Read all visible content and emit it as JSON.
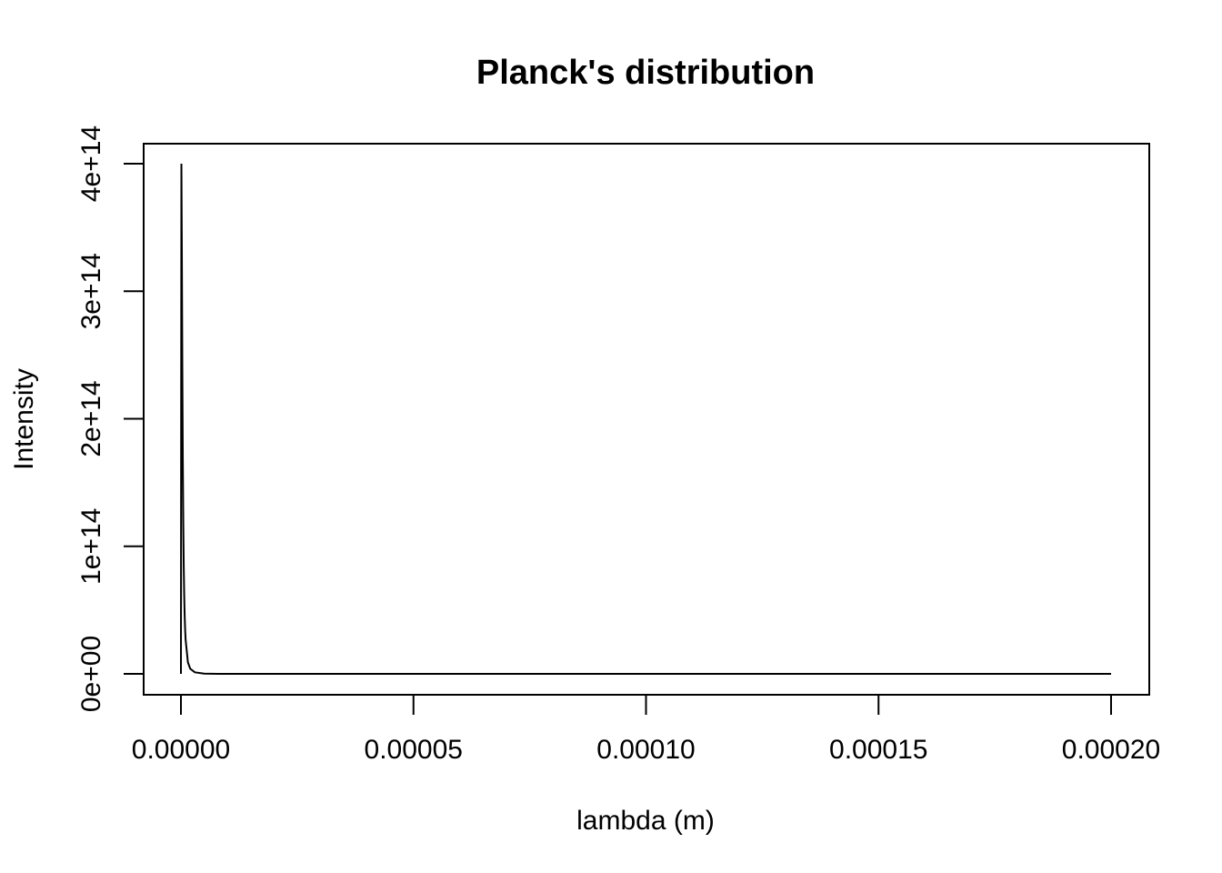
{
  "chart_data": {
    "type": "line",
    "title": "Planck's distribution",
    "xlabel": "lambda (m)",
    "ylabel": "Intensity",
    "xlim": [
      0,
      0.0002
    ],
    "ylim": [
      0,
      400000000000000.0
    ],
    "x_ticks": [
      {
        "value": 0,
        "label": "0.00000"
      },
      {
        "value": 5e-05,
        "label": "0.00005"
      },
      {
        "value": 0.0001,
        "label": "0.00010"
      },
      {
        "value": 0.00015,
        "label": "0.00015"
      },
      {
        "value": 0.0002,
        "label": "0.00020"
      }
    ],
    "y_ticks": [
      {
        "value": 0,
        "label": "0e+00"
      },
      {
        "value": 100000000000000.0,
        "label": "1e+14"
      },
      {
        "value": 200000000000000.0,
        "label": "2e+14"
      },
      {
        "value": 300000000000000.0,
        "label": "3e+14"
      },
      {
        "value": 400000000000000.0,
        "label": "4e+14"
      }
    ],
    "grid": false,
    "series": [
      {
        "color": "#000000",
        "x": [
          0,
          1e-07,
          2e-07,
          3e-07,
          4e-07,
          5e-07,
          6e-07,
          7e-07,
          8e-07,
          9e-07,
          1e-06,
          1.5e-06,
          2e-06,
          3e-06,
          5e-06,
          8e-06,
          1e-05,
          2e-05,
          5e-05,
          0.0001,
          0.00015,
          0.0002
        ],
        "y": [
          0,
          400000000000000.0,
          330000000000000.0,
          240000000000000.0,
          170000000000000.0,
          120000000000000.0,
          85000000000000.0,
          62000000000000.0,
          46000000000000.0,
          35000000000000.0,
          27000000000000.0,
          9000000000000.0,
          4000000000000.0,
          1200000000000.0,
          200000000000.0,
          30000000000.0,
          15000000000.0,
          1000000000.0,
          30000000.0,
          2000000.0,
          400000.0,
          130000.0
        ]
      }
    ]
  }
}
